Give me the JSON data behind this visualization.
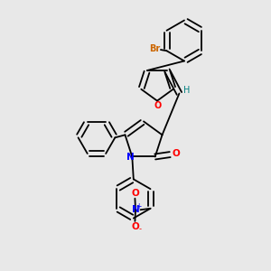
{
  "background_color": "#e8e8e8",
  "atom_colors": {
    "C": "#000000",
    "O": "#ff0000",
    "N": "#0000ff",
    "Br": "#cc6600",
    "H": "#008080"
  },
  "bond_color": "#000000",
  "lw": 1.3
}
